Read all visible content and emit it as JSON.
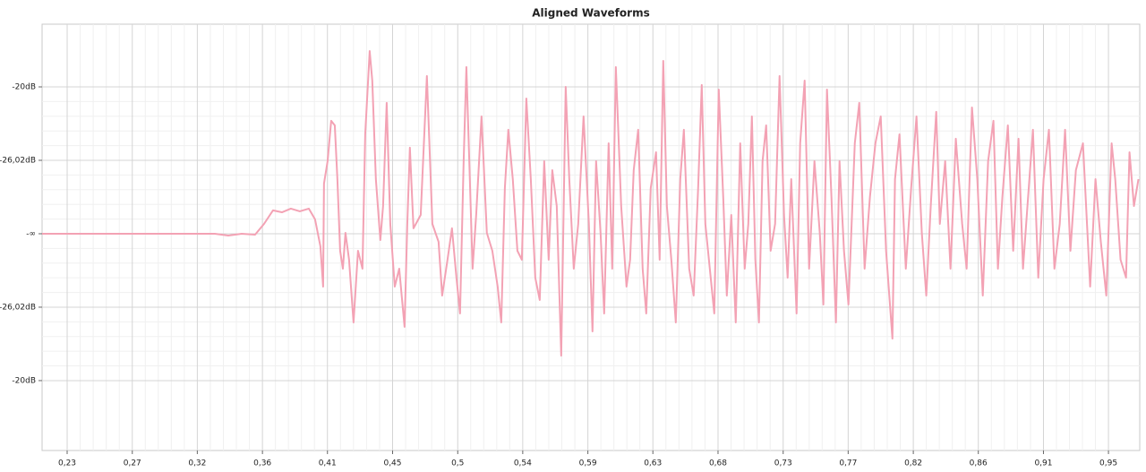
{
  "chart_data": {
    "type": "line",
    "title": "Aligned Waveforms",
    "color": "#f3a2b4",
    "grid": true,
    "xlim": [
      0.2111,
      0.9727
    ],
    "ylim": [
      -0.1476,
      0.1427
    ],
    "xticks": [
      {
        "value": 0.2285,
        "label": "0,23"
      },
      {
        "value": 0.2737,
        "label": "0,27"
      },
      {
        "value": 0.3188,
        "label": "0,32"
      },
      {
        "value": 0.364,
        "label": "0,36"
      },
      {
        "value": 0.4091,
        "label": "0,41"
      },
      {
        "value": 0.4543,
        "label": "0,45"
      },
      {
        "value": 0.4995,
        "label": "0,5"
      },
      {
        "value": 0.5446,
        "label": "0,54"
      },
      {
        "value": 0.5898,
        "label": "0,59"
      },
      {
        "value": 0.6349,
        "label": "0,63"
      },
      {
        "value": 0.6801,
        "label": "0,68"
      },
      {
        "value": 0.7253,
        "label": "0,73"
      },
      {
        "value": 0.7704,
        "label": "0,77"
      },
      {
        "value": 0.8156,
        "label": "0,82"
      },
      {
        "value": 0.8607,
        "label": "0,86"
      },
      {
        "value": 0.9059,
        "label": "0,91"
      },
      {
        "value": 0.951,
        "label": "0,95"
      }
    ],
    "yticks": [
      {
        "value": 0.1,
        "label": "-20dB"
      },
      {
        "value": 0.05,
        "label": "-26,02dB"
      },
      {
        "value": 0,
        "label": "-∞"
      },
      {
        "value": -0.05,
        "label": "-26,02dB"
      },
      {
        "value": -0.1,
        "label": "-20dB"
      }
    ],
    "x": [
      0.2111,
      0.331,
      0.3403,
      0.3496,
      0.3589,
      0.3651,
      0.3713,
      0.3775,
      0.3837,
      0.3899,
      0.3962,
      0.4005,
      0.4042,
      0.4061,
      0.4067,
      0.4092,
      0.4117,
      0.4142,
      0.416,
      0.4179,
      0.4198,
      0.4216,
      0.4241,
      0.4272,
      0.4303,
      0.4334,
      0.4353,
      0.4384,
      0.4402,
      0.4427,
      0.4458,
      0.4477,
      0.4502,
      0.4527,
      0.4558,
      0.4589,
      0.4626,
      0.4645,
      0.4663,
      0.4688,
      0.4738,
      0.4781,
      0.4819,
      0.4862,
      0.4887,
      0.4924,
      0.4955,
      0.4986,
      0.5011,
      0.5036,
      0.5055,
      0.5079,
      0.5098,
      0.5123,
      0.516,
      0.5197,
      0.5235,
      0.5272,
      0.5297,
      0.5322,
      0.5346,
      0.5377,
      0.5409,
      0.544,
      0.5471,
      0.5502,
      0.5533,
      0.5564,
      0.5595,
      0.5626,
      0.5651,
      0.5682,
      0.5713,
      0.5744,
      0.5769,
      0.58,
      0.5831,
      0.5868,
      0.5905,
      0.593,
      0.5955,
      0.5986,
      0.6011,
      0.6042,
      0.6067,
      0.6092,
      0.6129,
      0.6166,
      0.6191,
      0.6216,
      0.6247,
      0.6278,
      0.6303,
      0.6334,
      0.6371,
      0.6396,
      0.6421,
      0.6446,
      0.6477,
      0.6508,
      0.6539,
      0.6564,
      0.6601,
      0.6632,
      0.6663,
      0.6688,
      0.6713,
      0.6744,
      0.6775,
      0.6806,
      0.6837,
      0.6862,
      0.6893,
      0.6924,
      0.6955,
      0.6986,
      0.7011,
      0.7036,
      0.706,
      0.7085,
      0.711,
      0.7135,
      0.7166,
      0.7197,
      0.7228,
      0.7259,
      0.7284,
      0.7309,
      0.7346,
      0.7371,
      0.7402,
      0.7433,
      0.747,
      0.7507,
      0.7532,
      0.7557,
      0.7588,
      0.7619,
      0.7644,
      0.7675,
      0.7706,
      0.775,
      0.7781,
      0.7818,
      0.7855,
      0.7893,
      0.793,
      0.7967,
      0.8011,
      0.8029,
      0.806,
      0.8104,
      0.8141,
      0.8178,
      0.8215,
      0.8246,
      0.8277,
      0.8315,
      0.834,
      0.8377,
      0.8414,
      0.8451,
      0.8495,
      0.8526,
      0.8563,
      0.86,
      0.8638,
      0.8675,
      0.8712,
      0.8743,
      0.8774,
      0.8812,
      0.8849,
      0.8886,
      0.8917,
      0.8948,
      0.8986,
      0.9023,
      0.906,
      0.9097,
      0.9135,
      0.9172,
      0.9209,
      0.9246,
      0.9284,
      0.9333,
      0.9383,
      0.942,
      0.9457,
      0.9495,
      0.9532,
      0.9557,
      0.9594,
      0.9632,
      0.9656,
      0.9687,
      0.9718
    ],
    "values": [
      0,
      0,
      -0.0012,
      0,
      -0.0006,
      0.0067,
      0.0159,
      0.0146,
      0.0171,
      0.0153,
      0.0171,
      0.0098,
      -0.0085,
      -0.036,
      0.0342,
      0.0494,
      0.0769,
      0.0738,
      0.0372,
      -0.0116,
      -0.0238,
      0.0006,
      -0.0177,
      -0.0604,
      -0.0116,
      -0.0238,
      0.0677,
      0.1244,
      0.1043,
      0.0372,
      -0.0043,
      0.0189,
      0.0891,
      0.0067,
      -0.036,
      -0.0238,
      -0.0634,
      0.0067,
      0.0586,
      0.0037,
      0.0128,
      0.1074,
      0.0067,
      -0.0055,
      -0.0421,
      -0.0177,
      0.0037,
      -0.0299,
      -0.0543,
      0.0494,
      0.1135,
      0.0372,
      -0.0238,
      0.0128,
      0.0799,
      0.0006,
      -0.0116,
      -0.036,
      -0.0604,
      0.0311,
      0.0708,
      0.0372,
      -0.0116,
      -0.0177,
      0.0921,
      0.0372,
      -0.0299,
      -0.0451,
      0.0494,
      -0.0177,
      0.0433,
      0.0189,
      -0.083,
      0.1,
      0.0372,
      -0.0238,
      0.0067,
      0.0799,
      0.0067,
      -0.0665,
      0.0494,
      0.0006,
      -0.0543,
      0.0616,
      -0.0238,
      0.1135,
      0.0189,
      -0.036,
      -0.0177,
      0.0433,
      0.0708,
      -0.0238,
      -0.0543,
      0.0311,
      0.0555,
      -0.0177,
      0.1177,
      0.0189,
      -0.0177,
      -0.0604,
      0.0372,
      0.0708,
      -0.0238,
      -0.0421,
      0.0311,
      0.1013,
      0.0067,
      -0.0238,
      -0.0543,
      0.0982,
      0.025,
      -0.0421,
      0.0128,
      -0.0604,
      0.0616,
      -0.0238,
      0.0067,
      0.0799,
      -0.0177,
      -0.0604,
      0.0494,
      0.0738,
      -0.0116,
      0.0067,
      0.1074,
      0.0128,
      -0.0299,
      0.0372,
      -0.0543,
      0.0616,
      0.1043,
      -0.0238,
      0.0494,
      0.0006,
      -0.0482,
      0.0982,
      0.025,
      -0.0604,
      0.0494,
      -0.0116,
      -0.0482,
      0.0616,
      0.0891,
      -0.0238,
      0.025,
      0.0616,
      0.0799,
      -0.0116,
      -0.0714,
      0.0372,
      0.0677,
      -0.0238,
      0.0311,
      0.0799,
      0.0006,
      -0.0421,
      0.0189,
      0.083,
      0.0067,
      0.0494,
      -0.0238,
      0.0647,
      0.0067,
      -0.0238,
      0.086,
      0.0372,
      -0.0421,
      0.0494,
      0.0769,
      -0.0238,
      0.025,
      0.0738,
      -0.0116,
      0.0647,
      -0.0238,
      0.0189,
      0.0708,
      -0.0299,
      0.0372,
      0.0708,
      -0.0238,
      0.0067,
      0.0708,
      -0.0116,
      0.0433,
      0.0616,
      -0.036,
      0.0372,
      -0.0055,
      -0.0421,
      0.0616,
      0.0372,
      -0.0177,
      -0.0299,
      0.0555,
      0.0189,
      0.0372
    ]
  }
}
